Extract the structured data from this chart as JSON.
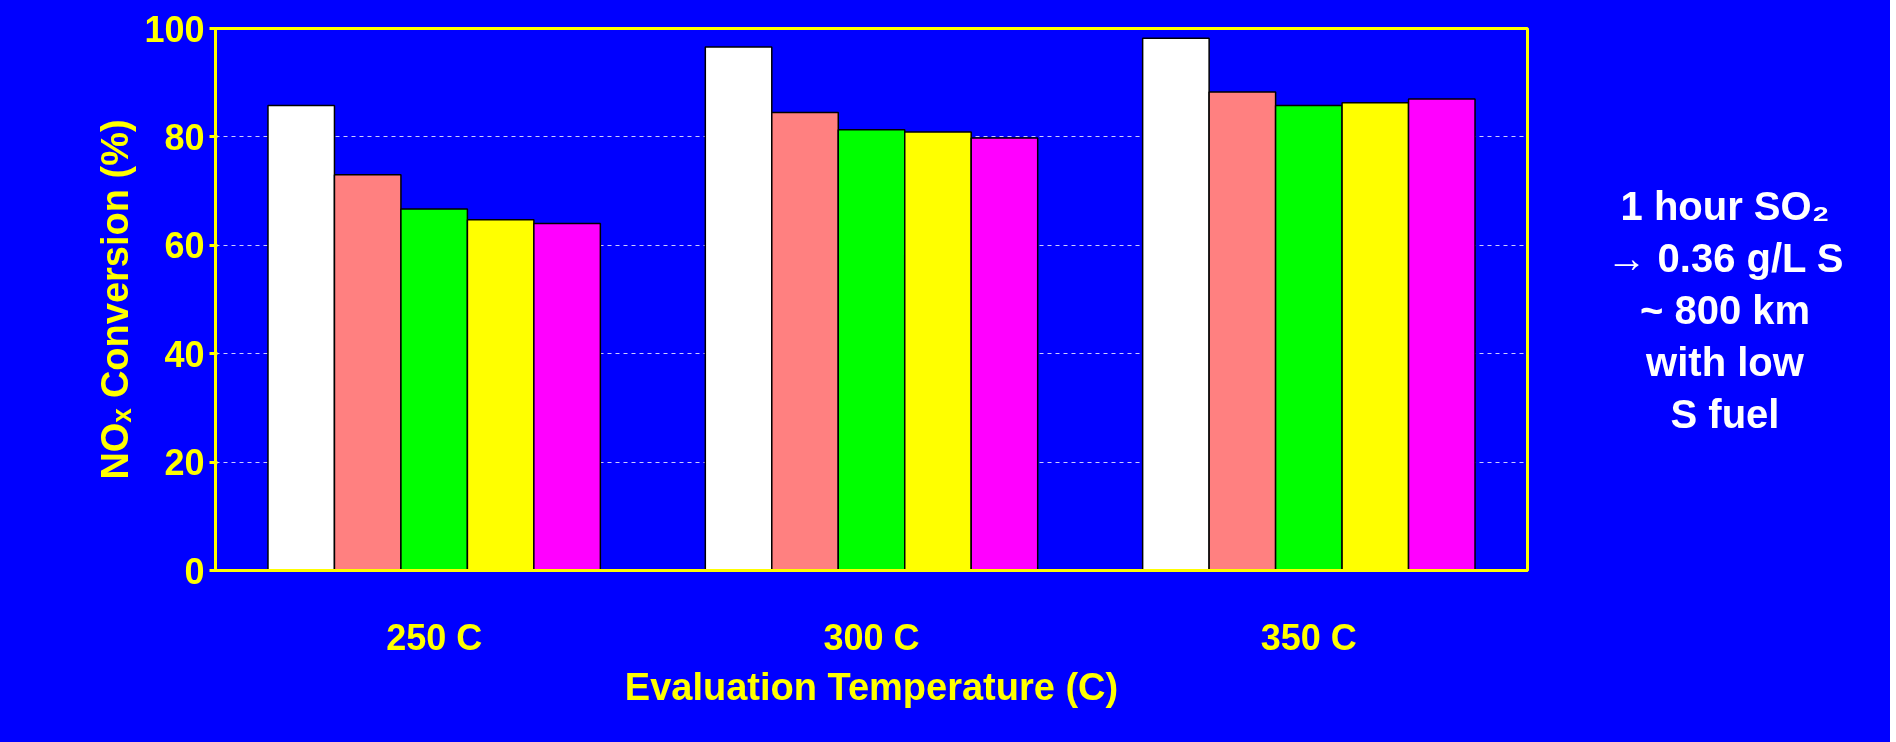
{
  "chart_data": {
    "type": "bar",
    "xlabel": "Evaluation Temperature (C)",
    "ylabel": "NOₓ Conversion (%)",
    "categories": [
      "250 C",
      "300 C",
      "350 C"
    ],
    "series": [
      {
        "color": "#ffffff",
        "values": [
          85.8,
          96.6,
          98.2
        ]
      },
      {
        "color": "#ff8080",
        "values": [
          73.0,
          84.5,
          88.3
        ]
      },
      {
        "color": "#00ff00",
        "values": [
          66.7,
          81.3,
          85.8
        ]
      },
      {
        "color": "#ffff00",
        "values": [
          64.7,
          80.9,
          86.3
        ]
      },
      {
        "color": "#ff00ff",
        "values": [
          64.0,
          79.8,
          87.0
        ]
      }
    ],
    "ylim": [
      0,
      100
    ],
    "yticks": [
      0,
      20,
      40,
      60,
      80,
      100
    ],
    "grid": "y",
    "annotations": [
      "1 hour SO₂\n→ 0.36 g/L S\n~ 800 km\nwith low\nS fuel"
    ]
  }
}
